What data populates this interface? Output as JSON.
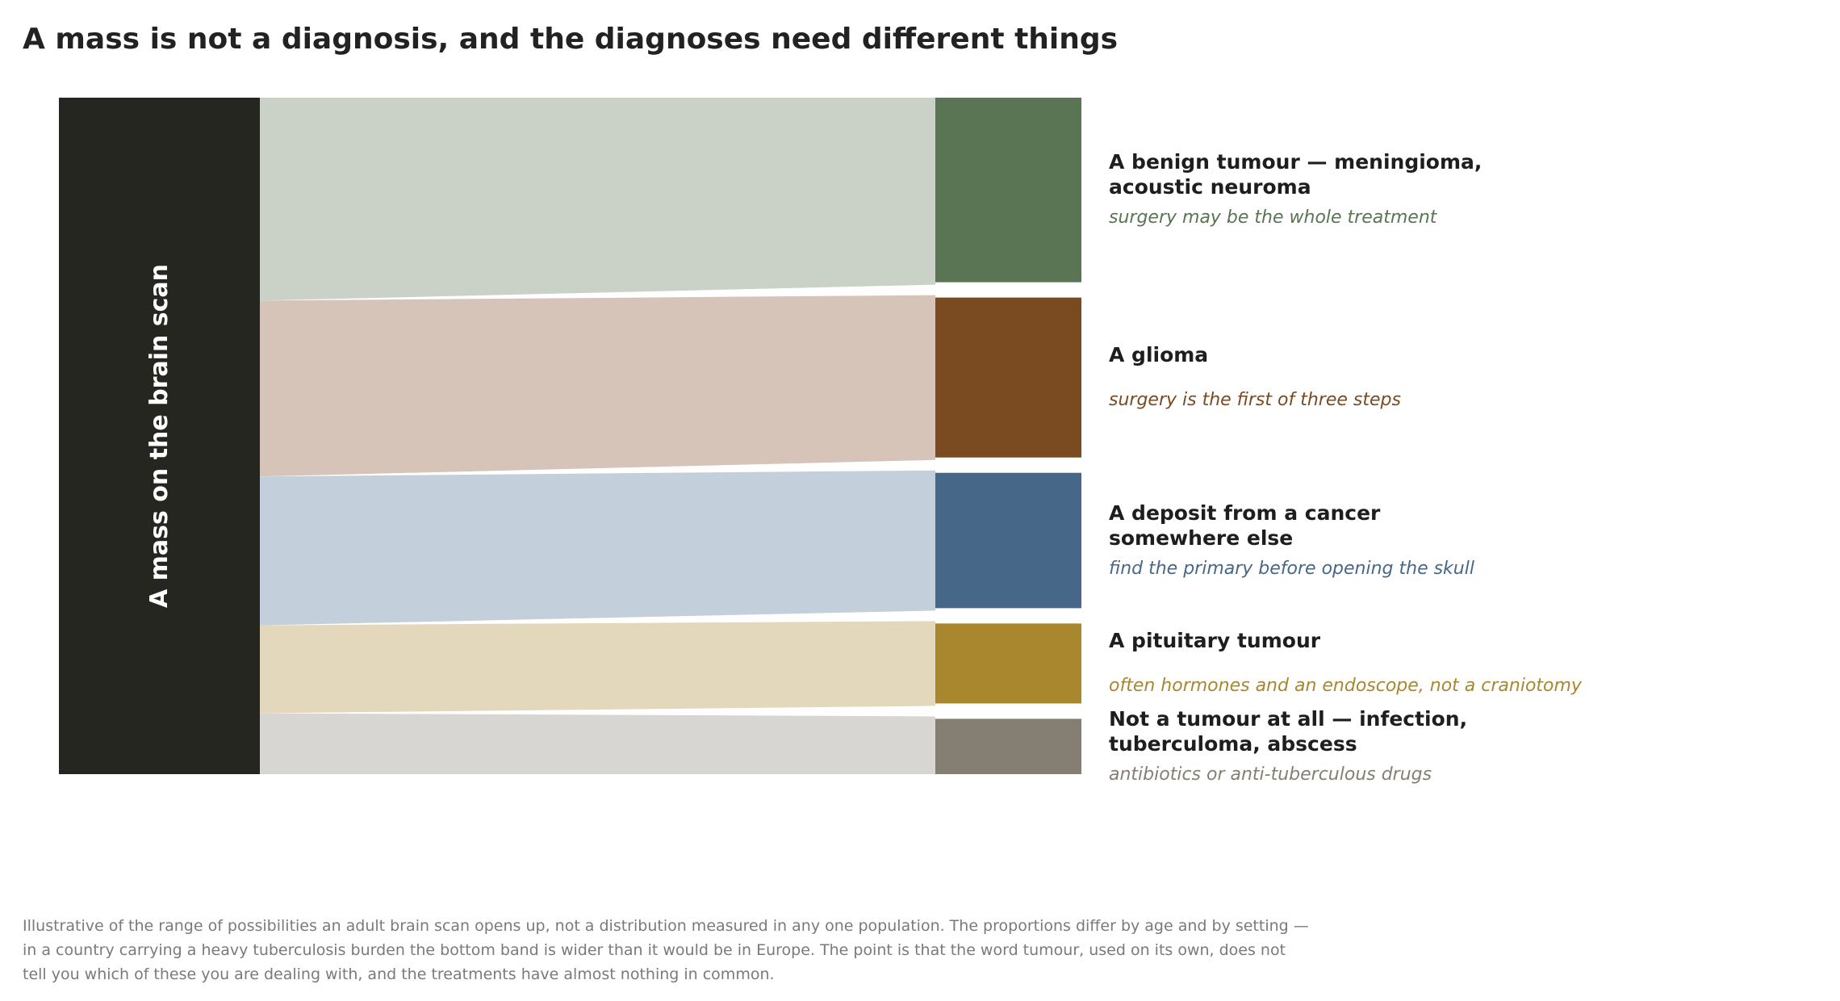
{
  "title": "A mass is not a diagnosis, and the diagnoses need different things",
  "chart_data": {
    "type": "sankey",
    "source": {
      "label": "A mass on the brain scan",
      "color": "#262620"
    },
    "targets": [
      {
        "title": "A benign tumour — meningioma,\nacoustic neuroma",
        "note": "surgery may be the whole treatment",
        "value": 30,
        "color": "#5a7553",
        "band_color": "#cad2c7",
        "note_color": "#5a7553"
      },
      {
        "title": "A glioma",
        "note": "surgery is the first of three steps",
        "value": 26,
        "color": "#7a4a20",
        "band_color": "#d5c4b7",
        "note_color": "#7a4a20"
      },
      {
        "title": "A deposit from a cancer\nsomewhere else",
        "note": "find the primary before opening the skull",
        "value": 22,
        "color": "#476789",
        "band_color": "#c3cfda",
        "note_color": "#476789"
      },
      {
        "title": "A pituitary tumour",
        "note": "often hormones and an endoscope, not a craniotomy",
        "value": 13,
        "color": "#a8872e",
        "band_color": "#e3d8bb",
        "note_color": "#a8872e"
      },
      {
        "title": "Not a tumour at all — infection,\ntuberculoma, abscess",
        "note": "antibiotics or anti-tuberculous drugs",
        "value": 9,
        "color": "#857e73",
        "band_color": "#d8d6d3",
        "note_color": "#857e73"
      }
    ]
  },
  "footnote": "Illustrative of the range of possibilities an adult brain scan opens up, not a distribution measured in any one population. The proportions differ by age and by setting — in a country carrying a heavy tuberculosis burden the bottom band is wider than it would be in Europe. The point is that the word tumour, used on its own, does not tell you which of these you are dealing with, and the treatments have almost nothing in common."
}
